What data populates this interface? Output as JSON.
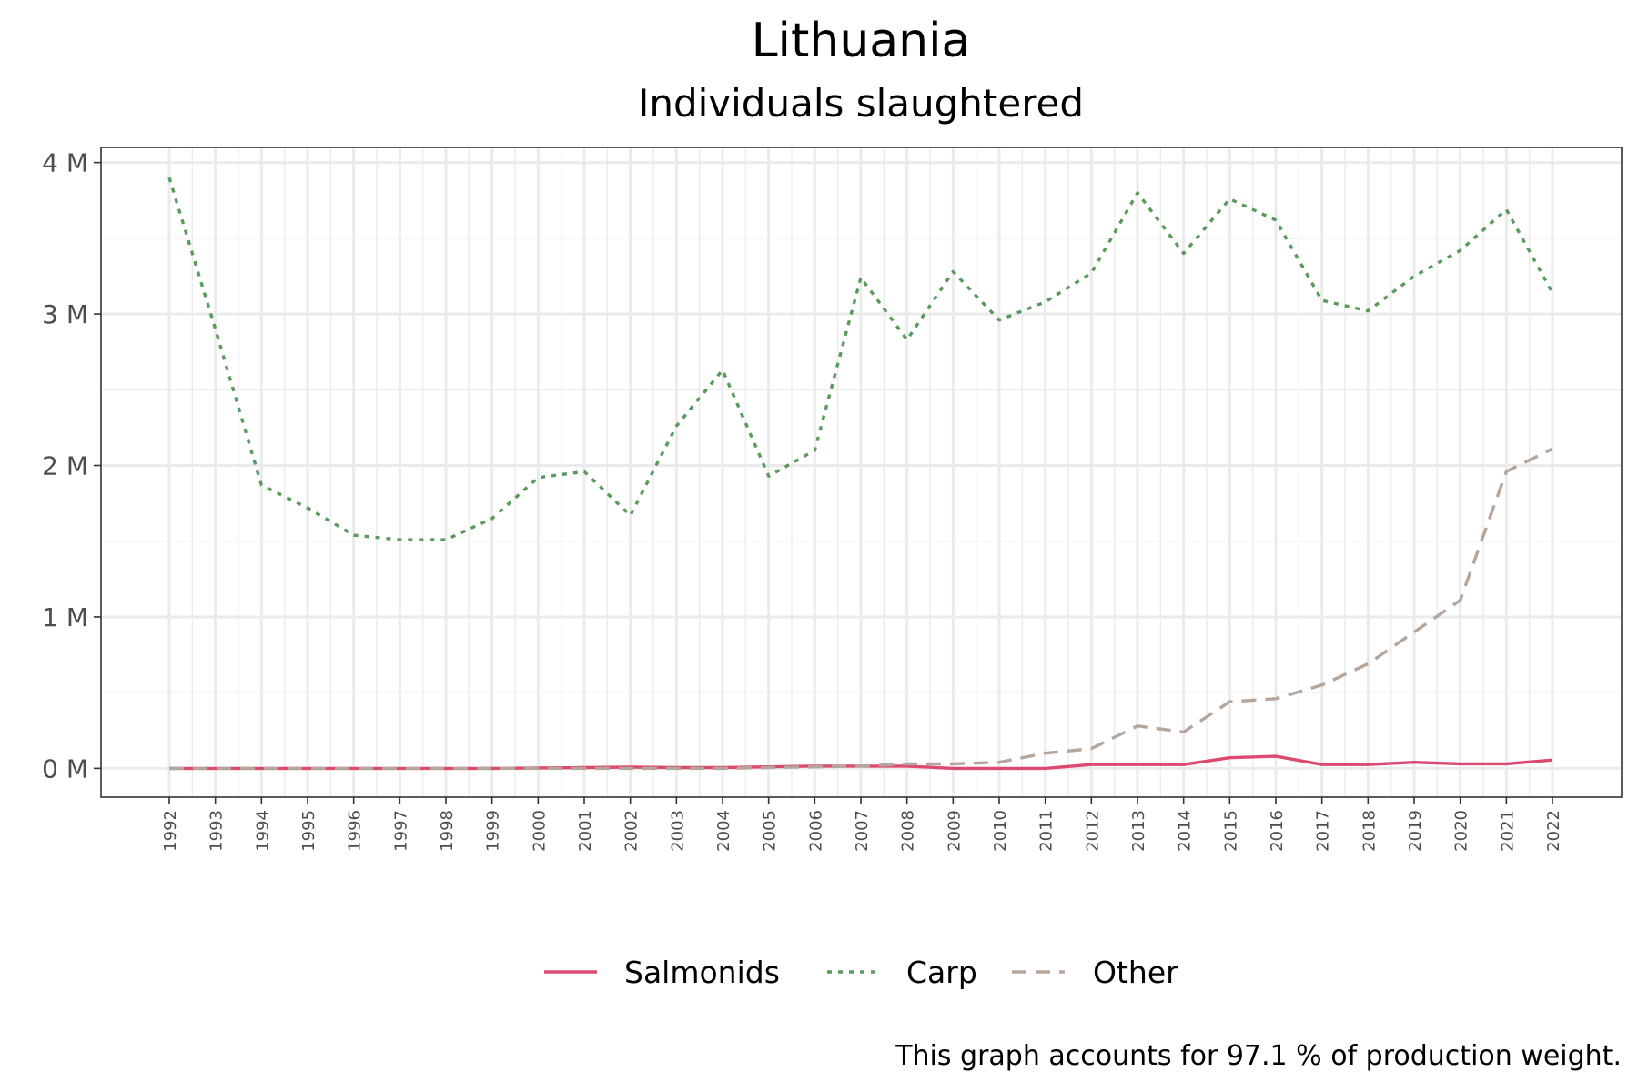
{
  "chart_data": {
    "type": "line",
    "title": "Lithuania",
    "subtitle": "Individuals slaughtered",
    "caption": "This graph accounts for 97.1 % of production weight.",
    "xlabel": "",
    "ylabel": "",
    "x": [
      "1992",
      "1993",
      "1994",
      "1995",
      "1996",
      "1997",
      "1998",
      "1999",
      "2000",
      "2001",
      "2002",
      "2003",
      "2004",
      "2005",
      "2006",
      "2007",
      "2008",
      "2009",
      "2010",
      "2011",
      "2012",
      "2013",
      "2014",
      "2015",
      "2016",
      "2017",
      "2018",
      "2019",
      "2020",
      "2021",
      "2022"
    ],
    "ylim": [
      -190000,
      4100000
    ],
    "yticks": [
      0,
      1000000,
      2000000,
      3000000,
      4000000
    ],
    "ytick_labels": [
      "0 M",
      "1 M",
      "2 M",
      "3 M",
      "4 M"
    ],
    "grid": true,
    "legend_position": "bottom",
    "series": [
      {
        "name": "Salmonids",
        "color": "#dc4a72",
        "dash": "solid",
        "values": [
          0,
          0,
          0,
          0,
          0,
          0,
          0,
          0,
          3000,
          5000,
          8000,
          5000,
          5000,
          10000,
          15000,
          15000,
          15000,
          0,
          0,
          0,
          25000,
          25000,
          25000,
          70000,
          80000,
          25000,
          25000,
          40000,
          30000,
          30000,
          55000
        ]
      },
      {
        "name": "Carp",
        "color": "#5a9a5c",
        "dash": "dotted",
        "values": [
          3900000,
          2900000,
          1870000,
          1720000,
          1540000,
          1510000,
          1510000,
          1650000,
          1920000,
          1960000,
          1670000,
          2260000,
          2630000,
          1930000,
          2100000,
          3240000,
          2830000,
          3280000,
          2960000,
          3080000,
          3270000,
          3800000,
          3400000,
          3760000,
          3620000,
          3090000,
          3020000,
          3250000,
          3420000,
          3690000,
          3140000
        ]
      },
      {
        "name": "Other",
        "color": "#b5a59a",
        "dash": "dashed",
        "values": [
          0,
          0,
          0,
          0,
          0,
          0,
          0,
          0,
          0,
          0,
          0,
          0,
          0,
          5000,
          10000,
          15000,
          30000,
          30000,
          40000,
          100000,
          130000,
          280000,
          240000,
          440000,
          460000,
          550000,
          690000,
          900000,
          1110000,
          1960000,
          2110000
        ]
      }
    ]
  }
}
